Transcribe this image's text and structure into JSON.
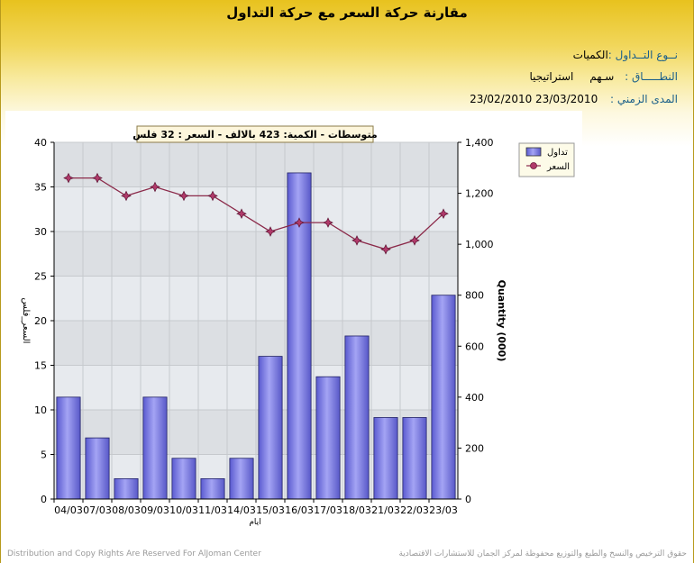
{
  "header": {
    "title": "مقارنة حركة السعر مع حركة التداول",
    "trade_type_label": "نــوع التــداول :",
    "trade_type_value": "الكميات",
    "scope_label": "النطـــــاق :",
    "scope_value_1": "سـهم",
    "scope_value_2": "استراتيجيا",
    "period_label": "المدى الزمني :",
    "period_value": "23/02/2010 23/03/2010"
  },
  "chart_data": {
    "type": "bar",
    "title": "متوسطات - الكمية: 423 بالالف  - السعر : 32 فلس",
    "categories": [
      "04/03",
      "07/03",
      "08/03",
      "09/03",
      "10/03",
      "11/03",
      "14/03",
      "15/03",
      "16/03",
      "17/03",
      "18/03",
      "21/03",
      "22/03",
      "23/03"
    ],
    "series": [
      {
        "name": "تداول",
        "type": "bar",
        "axis": "right",
        "values": [
          400,
          240,
          80,
          400,
          160,
          80,
          160,
          560,
          1280,
          480,
          640,
          320,
          320,
          800
        ]
      },
      {
        "name": "السعر",
        "type": "line",
        "axis": "left",
        "values": [
          36,
          36,
          34,
          35,
          34,
          34,
          32,
          30,
          31,
          31,
          29,
          28,
          29,
          32
        ]
      }
    ],
    "xlabel": "ايام",
    "ylabel_left": "السعر_فلس",
    "ylabel_right": "Quantity (000)",
    "ylim_left": [
      0,
      40
    ],
    "ylim_right": [
      0,
      1400
    ],
    "yticks_left": [
      "0",
      "5",
      "10",
      "15",
      "20",
      "25",
      "30",
      "35",
      "40"
    ],
    "yticks_right": [
      "0",
      "200",
      "400",
      "600",
      "800",
      "1,000",
      "1,200",
      "1,400"
    ],
    "legend_position": "top-right",
    "grid": true,
    "colors": {
      "bar": "#7a7ae6",
      "line": "#8b2a4a",
      "marker": "#b03a6a"
    }
  },
  "footer": {
    "left": "Distribution and Copy Rights Are Reserved For AlJoman Center",
    "right": "حقوق الترخيص والنسخ والطبع والتوزيع محفوظة لمركز الجمان للاستشارات الاقتصادية"
  }
}
